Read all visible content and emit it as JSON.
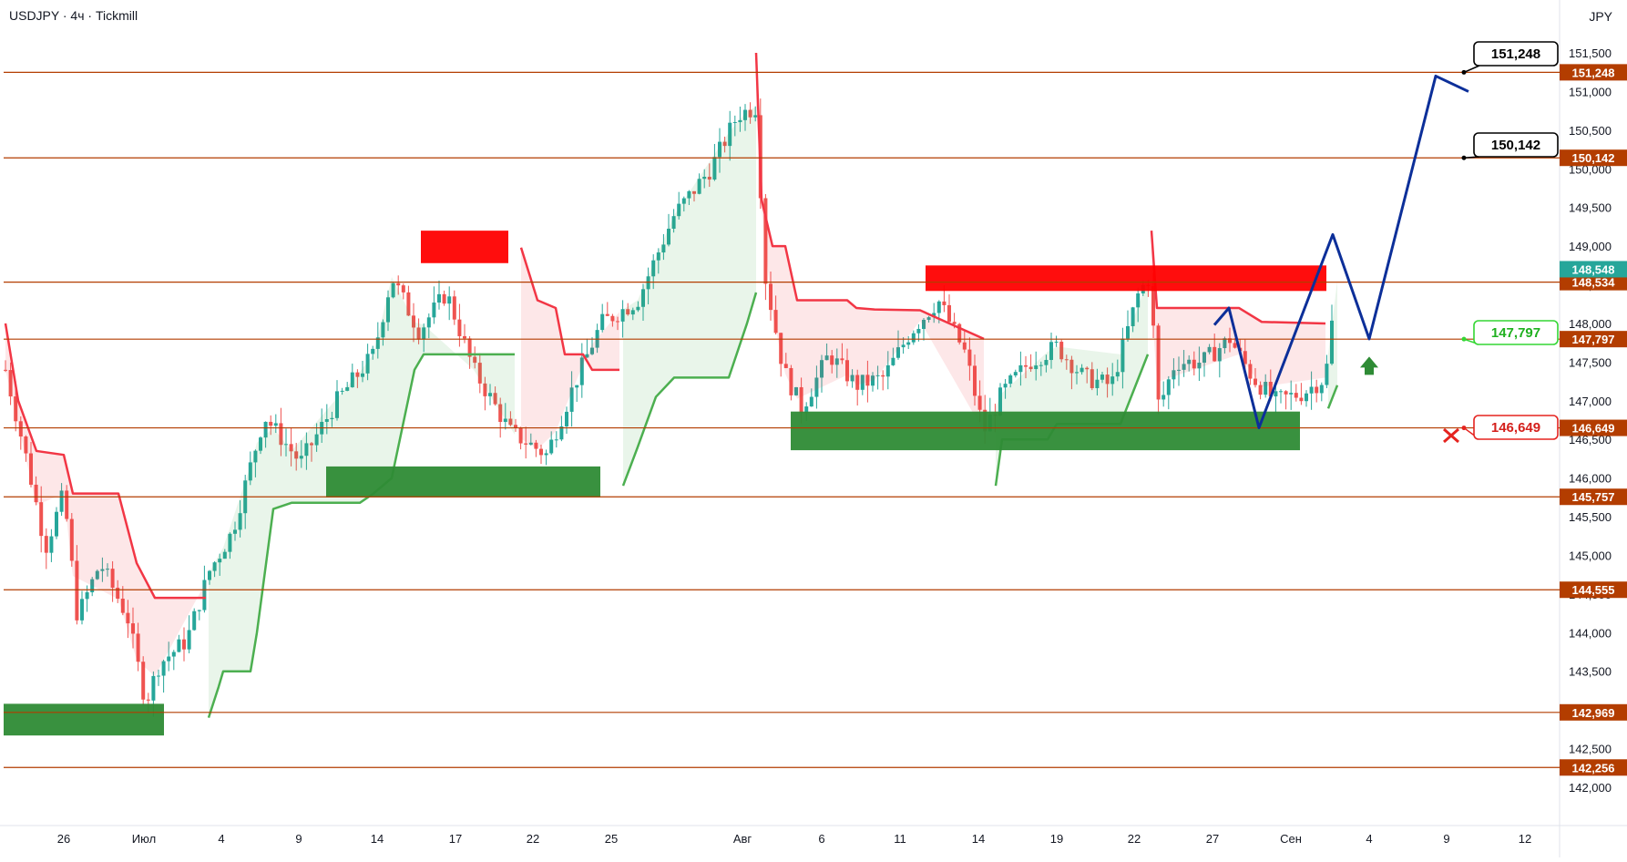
{
  "header": {
    "symbol_line": "USDJPY · 4ч · Tickmill",
    "currency": "JPY"
  },
  "chart_data": {
    "type": "candlestick",
    "symbol": "USDJPY",
    "timeframe": "4ч",
    "broker": "Tickmill",
    "ylim": [
      141.85,
      151.95
    ],
    "y_ticks": [
      142.0,
      142.5,
      143.0,
      143.5,
      144.0,
      144.5,
      145.0,
      145.5,
      146.0,
      146.5,
      147.0,
      147.5,
      148.0,
      148.5,
      149.0,
      149.5,
      150.0,
      150.5,
      151.0,
      151.5
    ],
    "y_tick_labels": [
      "142,000",
      "142,500",
      "143,000",
      "143,500",
      "144,000",
      "144,500",
      "145,000",
      "145,500",
      "146,000",
      "146,500",
      "147,000",
      "147,500",
      "148,000",
      "148,500",
      "149,000",
      "149,500",
      "150,000",
      "150,500",
      "151,000",
      "151,500"
    ],
    "x_labels": [
      "26",
      "Июл",
      "4",
      "9",
      "14",
      "17",
      "22",
      "25",
      "Авг",
      "6",
      "11",
      "14",
      "19",
      "22",
      "27",
      "Сен",
      "4",
      "9",
      "12"
    ],
    "levels": [
      {
        "value": 151.248,
        "label": "151,248",
        "color": "#b33d00"
      },
      {
        "value": 150.142,
        "label": "150,142",
        "color": "#b33d00"
      },
      {
        "value": 148.534,
        "label": "148,534",
        "color": "#b33d00"
      },
      {
        "value": 147.797,
        "label": "147,797",
        "color": "#b33d00"
      },
      {
        "value": 146.649,
        "label": "146,649",
        "color": "#b33d00"
      },
      {
        "value": 145.757,
        "label": "145,757",
        "color": "#b33d00"
      },
      {
        "value": 144.555,
        "label": "144,555",
        "color": "#b33d00"
      },
      {
        "value": 142.969,
        "label": "142,969",
        "color": "#b33d00"
      },
      {
        "value": 142.256,
        "label": "142,256",
        "color": "#b33d00"
      }
    ],
    "last_price": {
      "value": 148.548,
      "label": "148,548",
      "color": "#26a69a"
    },
    "callouts": [
      {
        "label": "151,248",
        "value": 151.248,
        "kind": "target"
      },
      {
        "label": "150,142",
        "value": 150.142,
        "kind": "target"
      },
      {
        "label": "147,797",
        "value": 147.797,
        "kind": "entry"
      },
      {
        "label": "146,649",
        "value": 146.649,
        "kind": "stop"
      }
    ],
    "zones": [
      {
        "type": "supply",
        "top": 149.2,
        "bottom": 148.78
      },
      {
        "type": "supply",
        "top": 148.75,
        "bottom": 148.42
      },
      {
        "type": "demand",
        "top": 146.15,
        "bottom": 145.75
      },
      {
        "type": "demand",
        "top": 146.86,
        "bottom": 146.36
      },
      {
        "type": "demand",
        "top": 143.08,
        "bottom": 142.67
      }
    ],
    "forecast_path": [
      149.16,
      148.48,
      147.65,
      148.05,
      148.82,
      146.65,
      148.35,
      149.15,
      147.8,
      151.2,
      151.0
    ],
    "colors": {
      "up": "#26a69a",
      "down": "#ef5350",
      "resistance": "#f23645",
      "support": "#4caf50",
      "forecast": "#0c2f99",
      "level": "#b33d00"
    },
    "grid": false
  }
}
